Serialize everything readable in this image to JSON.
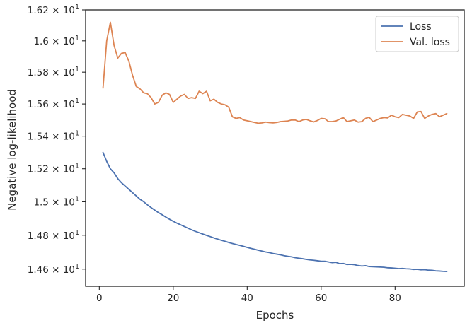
{
  "chart_data": {
    "type": "line",
    "title": "",
    "xlabel": "Epochs",
    "ylabel": "Negative log-likelihood",
    "xlim": [
      -3.7,
      98.7
    ],
    "ylim": [
      14.5,
      16.2
    ],
    "x_ticks": [
      0,
      20,
      40,
      60,
      80
    ],
    "y_ticks": [
      {
        "value": 14.6,
        "mantissa": "1.46",
        "base": "10",
        "exp": "1"
      },
      {
        "value": 14.8,
        "mantissa": "1.48",
        "base": "10",
        "exp": "1"
      },
      {
        "value": 15.0,
        "mantissa": "1.5",
        "base": "10",
        "exp": "1"
      },
      {
        "value": 15.2,
        "mantissa": "1.52",
        "base": "10",
        "exp": "1"
      },
      {
        "value": 15.4,
        "mantissa": "1.54",
        "base": "10",
        "exp": "1"
      },
      {
        "value": 15.6,
        "mantissa": "1.56",
        "base": "10",
        "exp": "1"
      },
      {
        "value": 15.8,
        "mantissa": "1.58",
        "base": "10",
        "exp": "1"
      },
      {
        "value": 16.0,
        "mantissa": "1.6",
        "base": "10",
        "exp": "1"
      },
      {
        "value": 16.2,
        "mantissa": "1.62",
        "base": "10",
        "exp": "1"
      }
    ],
    "y_scale": "log",
    "grid": false,
    "legend_position": "top-right",
    "series": [
      {
        "name": "Loss",
        "color": "#4c72b0",
        "x": [
          1,
          2,
          3,
          4,
          5,
          6,
          7,
          8,
          9,
          10,
          11,
          12,
          13,
          14,
          15,
          16,
          17,
          18,
          19,
          20,
          21,
          22,
          23,
          24,
          25,
          26,
          27,
          28,
          29,
          30,
          31,
          32,
          33,
          34,
          35,
          36,
          37,
          38,
          39,
          40,
          41,
          42,
          43,
          44,
          45,
          46,
          47,
          48,
          49,
          50,
          51,
          52,
          53,
          54,
          55,
          56,
          57,
          58,
          59,
          60,
          61,
          62,
          63,
          64,
          65,
          66,
          67,
          68,
          69,
          70,
          71,
          72,
          73,
          74,
          75,
          76,
          77,
          78,
          79,
          80,
          81,
          82,
          83,
          84,
          85,
          86,
          87,
          88,
          89,
          90,
          91,
          92,
          93,
          94
        ],
        "y": [
          15.3,
          15.245,
          15.2,
          15.175,
          15.14,
          15.115,
          15.095,
          15.075,
          15.055,
          15.035,
          15.015,
          15.0,
          14.982,
          14.965,
          14.95,
          14.935,
          14.922,
          14.908,
          14.895,
          14.883,
          14.872,
          14.862,
          14.852,
          14.842,
          14.832,
          14.823,
          14.815,
          14.807,
          14.799,
          14.792,
          14.784,
          14.777,
          14.77,
          14.764,
          14.757,
          14.751,
          14.745,
          14.74,
          14.734,
          14.728,
          14.722,
          14.717,
          14.711,
          14.706,
          14.701,
          14.697,
          14.692,
          14.688,
          14.684,
          14.679,
          14.675,
          14.672,
          14.667,
          14.664,
          14.661,
          14.657,
          14.654,
          14.652,
          14.649,
          14.646,
          14.646,
          14.642,
          14.638,
          14.64,
          14.632,
          14.633,
          14.627,
          14.628,
          14.626,
          14.621,
          14.618,
          14.62,
          14.615,
          14.614,
          14.613,
          14.612,
          14.611,
          14.608,
          14.607,
          14.605,
          14.603,
          14.604,
          14.602,
          14.601,
          14.598,
          14.599,
          14.596,
          14.597,
          14.594,
          14.593,
          14.59,
          14.589,
          14.587,
          14.586
        ]
      },
      {
        "name": "Val. loss",
        "color": "#dd8452",
        "x": [
          1,
          2,
          3,
          4,
          5,
          6,
          7,
          8,
          9,
          10,
          11,
          12,
          13,
          14,
          15,
          16,
          17,
          18,
          19,
          20,
          21,
          22,
          23,
          24,
          25,
          26,
          27,
          28,
          29,
          30,
          31,
          32,
          33,
          34,
          35,
          36,
          37,
          38,
          39,
          40,
          41,
          42,
          43,
          44,
          45,
          46,
          47,
          48,
          49,
          50,
          51,
          52,
          53,
          54,
          55,
          56,
          57,
          58,
          59,
          60,
          61,
          62,
          63,
          64,
          65,
          66,
          67,
          68,
          69,
          70,
          71,
          72,
          73,
          74,
          75,
          76,
          77,
          78,
          79,
          80,
          81,
          82,
          83,
          84,
          85,
          86,
          87,
          88,
          89,
          90,
          91,
          92,
          93,
          94
        ],
        "y": [
          15.7,
          16.0,
          16.12,
          15.97,
          15.89,
          15.92,
          15.925,
          15.87,
          15.78,
          15.71,
          15.695,
          15.67,
          15.665,
          15.64,
          15.6,
          15.61,
          15.655,
          15.67,
          15.66,
          15.61,
          15.63,
          15.65,
          15.66,
          15.635,
          15.64,
          15.635,
          15.68,
          15.665,
          15.68,
          15.62,
          15.63,
          15.61,
          15.6,
          15.595,
          15.58,
          15.52,
          15.51,
          15.515,
          15.5,
          15.495,
          15.49,
          15.485,
          15.48,
          15.482,
          15.487,
          15.484,
          15.482,
          15.485,
          15.49,
          15.492,
          15.494,
          15.5,
          15.5,
          15.49,
          15.5,
          15.504,
          15.495,
          15.488,
          15.497,
          15.51,
          15.508,
          15.49,
          15.49,
          15.494,
          15.505,
          15.515,
          15.49,
          15.495,
          15.5,
          15.487,
          15.49,
          15.51,
          15.517,
          15.49,
          15.5,
          15.51,
          15.515,
          15.513,
          15.53,
          15.52,
          15.515,
          15.535,
          15.53,
          15.525,
          15.51,
          15.55,
          15.553,
          15.51,
          15.525,
          15.535,
          15.54,
          15.52,
          15.53,
          15.54
        ]
      }
    ]
  }
}
